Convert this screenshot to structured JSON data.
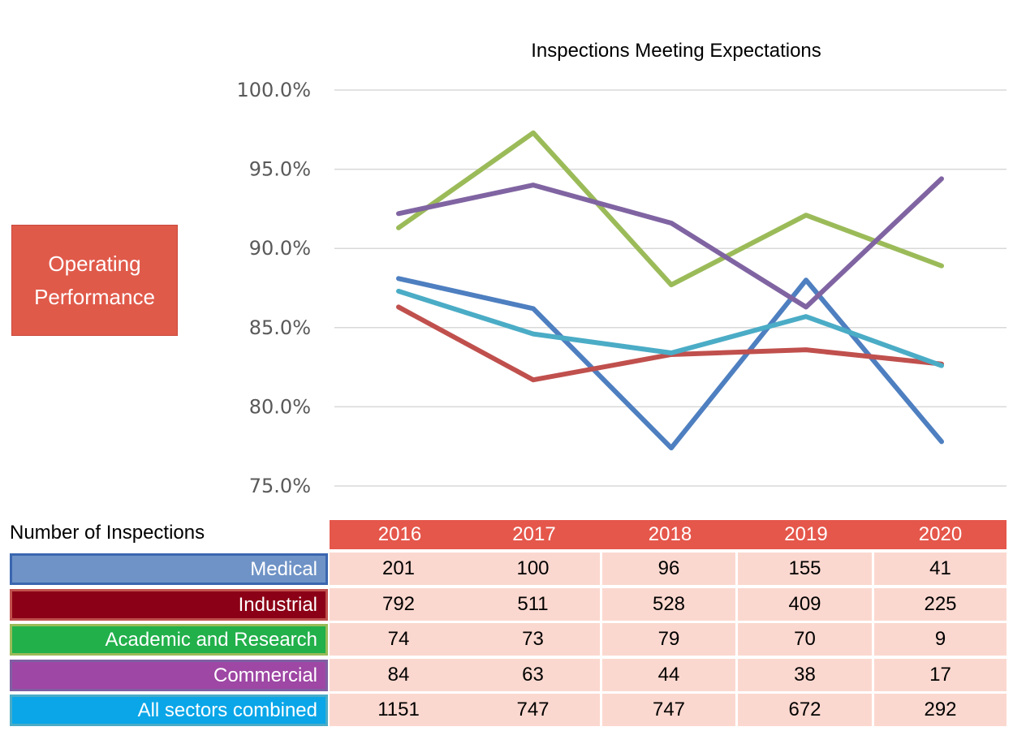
{
  "badge": {
    "line1": "Operating",
    "line2": "Performance"
  },
  "table": {
    "heading": "Number of Inspections",
    "years": [
      "2016",
      "2017",
      "2018",
      "2019",
      "2020"
    ],
    "rows": [
      {
        "label": "Medical",
        "bg": "#6f93c6",
        "border": "#3b66b0",
        "values": [
          "201",
          "100",
          "96",
          "155",
          "41"
        ]
      },
      {
        "label": "Industrial",
        "bg": "#8b0016",
        "border": "#c0504d",
        "values": [
          "792",
          "511",
          "528",
          "409",
          "225"
        ]
      },
      {
        "label": "Academic and Research",
        "bg": "#22b04b",
        "border": "#9bbb59",
        "values": [
          "74",
          "73",
          "79",
          "70",
          "9"
        ]
      },
      {
        "label": "Commercial",
        "bg": "#9e47a4",
        "border": "#7f5fa3",
        "values": [
          "84",
          "63",
          "44",
          "38",
          "17"
        ]
      },
      {
        "label": "All sectors combined",
        "bg": "#0aa6e8",
        "border": "#4bacc6",
        "values": [
          "1151",
          "747",
          "747",
          "672",
          "292"
        ]
      }
    ]
  },
  "chart_data": {
    "type": "line",
    "title": "Inspections Meeting Expectations",
    "xlabel": "",
    "ylabel": "",
    "categories": [
      "2016",
      "2017",
      "2018",
      "2019",
      "2020"
    ],
    "ylim": [
      75.0,
      100.0
    ],
    "yticks": [
      "100.0%",
      "95.0%",
      "90.0%",
      "85.0%",
      "80.0%",
      "75.0%"
    ],
    "ytick_values": [
      100,
      95,
      90,
      85,
      80,
      75
    ],
    "grid": true,
    "legend": "none",
    "series": [
      {
        "color": "#4e7fc0",
        "values": [
          88.1,
          86.2,
          77.4,
          88.0,
          77.8
        ]
      },
      {
        "color": "#c0504d",
        "values": [
          86.3,
          81.7,
          83.3,
          83.6,
          82.7
        ]
      },
      {
        "color": "#9bbb59",
        "values": [
          91.3,
          97.3,
          87.7,
          92.1,
          88.9
        ]
      },
      {
        "color": "#8064a2",
        "values": [
          92.2,
          94.0,
          91.6,
          86.3,
          94.4
        ]
      },
      {
        "color": "#4bacc6",
        "values": [
          87.3,
          84.6,
          83.4,
          85.7,
          82.6
        ]
      }
    ]
  }
}
